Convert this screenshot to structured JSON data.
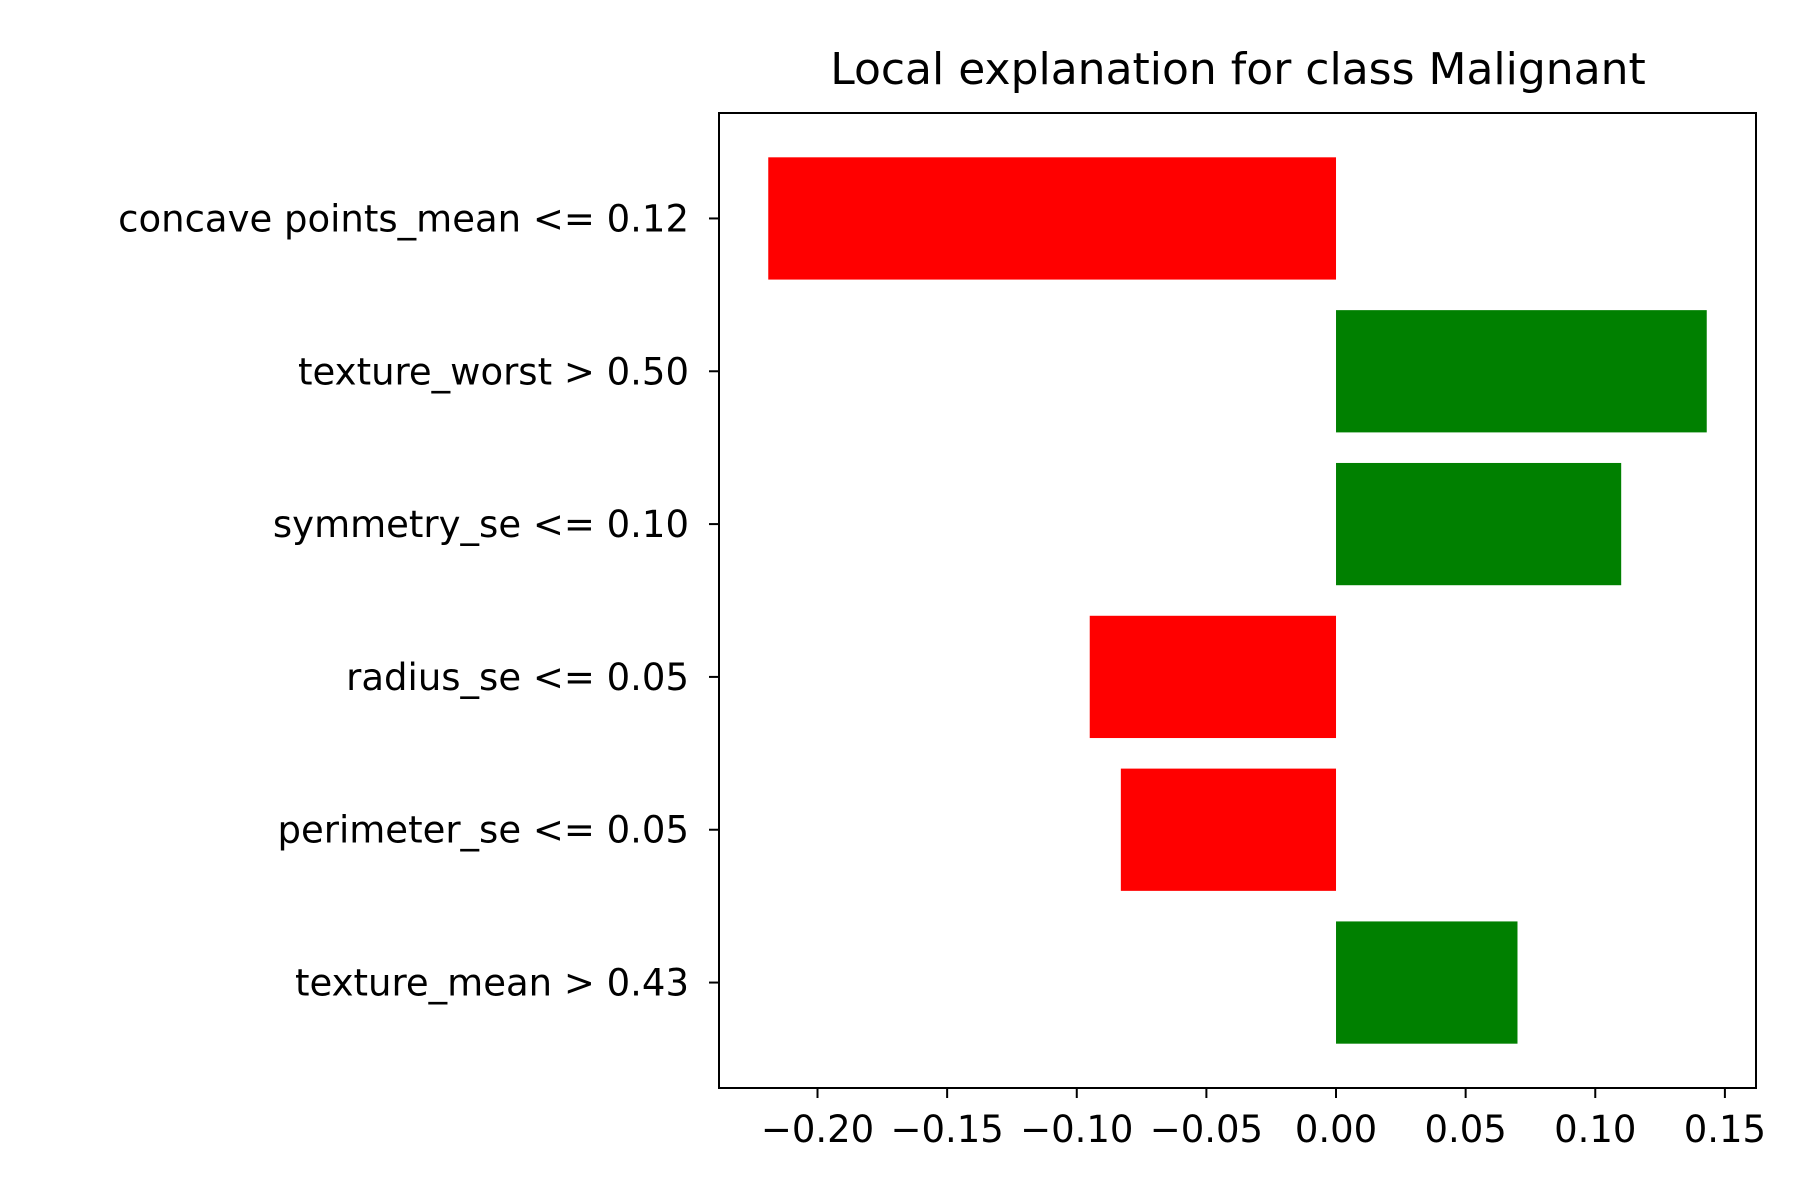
{
  "chart_data": {
    "type": "bar",
    "orientation": "horizontal",
    "title": "Local explanation for class Malignant",
    "xlabel": "",
    "ylabel": "",
    "categories": [
      "concave points_mean <= 0.12",
      "texture_worst > 0.50",
      "symmetry_se <= 0.10",
      "radius_se <= 0.05",
      "perimeter_se <= 0.05",
      "texture_mean > 0.43"
    ],
    "values": [
      -0.219,
      0.143,
      0.11,
      -0.095,
      -0.083,
      0.07
    ],
    "xlim": [
      -0.238,
      0.162
    ],
    "xticks": [
      -0.2,
      -0.15,
      -0.1,
      -0.05,
      0.0,
      0.05,
      0.1,
      0.15
    ],
    "xtick_labels": [
      "−0.20",
      "−0.15",
      "−0.10",
      "−0.05",
      "0.00",
      "0.05",
      "0.10",
      "0.15"
    ],
    "grid": false,
    "legend": "none",
    "colors": {
      "positive": "#008000",
      "negative": "#ff0000",
      "axes": "#000000",
      "background": "#ffffff"
    }
  }
}
